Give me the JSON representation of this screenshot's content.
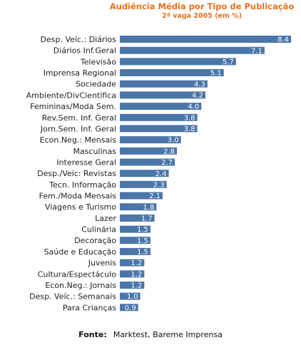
{
  "chart_data": {
    "type": "bar",
    "orientation": "horizontal",
    "title": "Audiência Média por Tipo de Publicação",
    "subtitle": "2ª vaga 2005 (em %)",
    "categories": [
      "Desp. Veíc.: Diários",
      "Diários Inf.Geral",
      "Televisão",
      "Imprensa Regional",
      "Sociedade",
      "Ambiente/DivCientifica",
      "Femininas/Moda Sem.",
      "Rev.Sem. Inf. Geral",
      "Jorn.Sem. Inf. Geral",
      "Econ.Neg.: Mensais",
      "Masculinas",
      "Interesse Geral",
      "Desp./Veíc: Revistas",
      "Tecn. Informação",
      "Fem./Moda Mensais",
      "Viagens e Turismo",
      "Lazer",
      "Culinária",
      "Decoração",
      "Saúde e Educação",
      "Juvenis",
      "Cultura/Espectáculo",
      "Econ.Neg.: Jornais",
      "Desp. Veíc.: Semanais",
      "Para Crianças"
    ],
    "values": [
      8.4,
      7.1,
      5.7,
      5.1,
      4.3,
      4.2,
      4.0,
      3.8,
      3.8,
      3.0,
      2.8,
      2.7,
      2.4,
      2.3,
      2.1,
      1.8,
      1.7,
      1.5,
      1.5,
      1.5,
      1.2,
      1.2,
      1.2,
      1.0,
      0.9
    ],
    "value_labels": [
      "8.4",
      "7.1",
      "5.7",
      "5.1",
      "4.3",
      "4.2",
      "4.0",
      "3.8",
      "3.8",
      "3.0",
      "2.8",
      "2.7",
      "2.4",
      "2.3",
      "2.1",
      "1.8",
      "1.7",
      "1.5",
      "1.5",
      "1.5",
      "1.2",
      "1.2",
      "1.2",
      "1.0",
      "0.9"
    ],
    "xlim": [
      0,
      8.4
    ],
    "grid": false,
    "legend": "none",
    "bar_color": "#4a76a8",
    "source_prefix": "Fonte:",
    "source_text": "Marktest, Bareme Imprensa"
  }
}
